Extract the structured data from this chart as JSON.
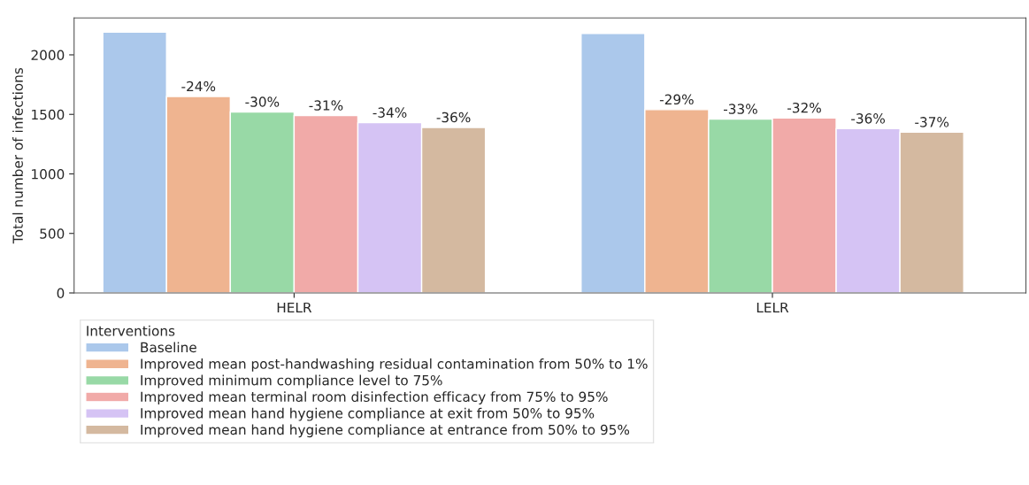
{
  "chart_data": {
    "type": "bar",
    "ylabel": "Total number of infections",
    "legend_title": "Interventions",
    "categories": [
      "HELR",
      "LELR"
    ],
    "series": [
      {
        "name": "Baseline",
        "color": "#abc8eb",
        "values": [
          2190,
          2180
        ]
      },
      {
        "name": "Improved mean post-handwashing residual contamination from 50% to 1%",
        "color": "#efb490",
        "values": [
          1650,
          1540
        ]
      },
      {
        "name": "Improved minimum compliance level to 75%",
        "color": "#98d9a6",
        "values": [
          1520,
          1460
        ]
      },
      {
        "name": "Improved mean terminal room disinfection efficacy from 75% to 95%",
        "color": "#f1aaa8",
        "values": [
          1490,
          1470
        ]
      },
      {
        "name": "Improved mean hand hygiene compliance at exit from 50% to 95%",
        "color": "#d5c3f4",
        "values": [
          1430,
          1380
        ]
      },
      {
        "name": "Improved mean hand hygiene compliance at entrance from 50% to 95%",
        "color": "#d4b9a0",
        "values": [
          1390,
          1350
        ]
      }
    ],
    "annotations": [
      "-24%",
      "-30%",
      "-31%",
      "-34%",
      "-36%",
      "-29%",
      "-33%",
      "-32%",
      "-36%",
      "-37%"
    ],
    "ylim": [
      0,
      2310
    ],
    "yticks": [
      0,
      500,
      1000,
      1500,
      2000
    ],
    "grid": false,
    "legend": "bottom left"
  }
}
